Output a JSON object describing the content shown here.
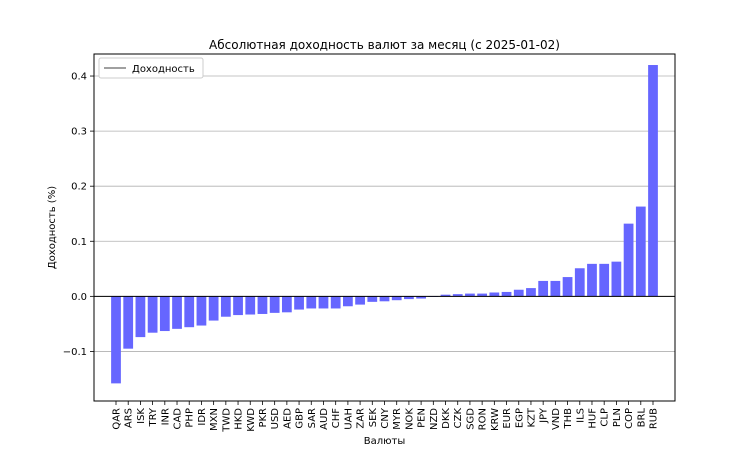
{
  "chart_data": {
    "type": "bar",
    "title": "Абсолютная доходность валют за месяц (с 2025-01-02)",
    "xlabel": "Валюты",
    "ylabel": "Доходность (%)",
    "legend": {
      "label": "Доходность",
      "placement": "top-left"
    },
    "ylim": [
      -0.19,
      0.44
    ],
    "yticks": [
      -0.1,
      0.0,
      0.1,
      0.2,
      0.3,
      0.4
    ],
    "ytick_labels": [
      "−0.1",
      "0.0",
      "0.1",
      "0.2",
      "0.3",
      "0.4"
    ],
    "grid": {
      "y": true,
      "x": false
    },
    "bar_color": "#6666ff",
    "zero_line_color": "#000000",
    "categories": [
      "QAR",
      "ARS",
      "ISK",
      "TRY",
      "INR",
      "CAD",
      "PHP",
      "IDR",
      "MXN",
      "TWD",
      "HKD",
      "KWD",
      "PKR",
      "USD",
      "AED",
      "GBP",
      "SAR",
      "AUD",
      "CHF",
      "UAH",
      "ZAR",
      "SEK",
      "CNY",
      "MYR",
      "NOK",
      "PEN",
      "NZD",
      "DKK",
      "CZK",
      "SGD",
      "RON",
      "KRW",
      "EUR",
      "EGP",
      "KZT",
      "JPY",
      "VND",
      "THB",
      "ILS",
      "HUF",
      "CLP",
      "PLN",
      "COP",
      "BRL",
      "RUB"
    ],
    "values": [
      -0.158,
      -0.095,
      -0.074,
      -0.066,
      -0.063,
      -0.059,
      -0.056,
      -0.053,
      -0.044,
      -0.037,
      -0.034,
      -0.033,
      -0.032,
      -0.03,
      -0.029,
      -0.024,
      -0.022,
      -0.022,
      -0.022,
      -0.018,
      -0.015,
      -0.01,
      -0.009,
      -0.007,
      -0.005,
      -0.004,
      -0.001,
      0.003,
      0.004,
      0.005,
      0.005,
      0.007,
      0.008,
      0.012,
      0.015,
      0.028,
      0.028,
      0.035,
      0.051,
      0.059,
      0.059,
      0.063,
      0.132,
      0.163,
      0.42
    ]
  }
}
